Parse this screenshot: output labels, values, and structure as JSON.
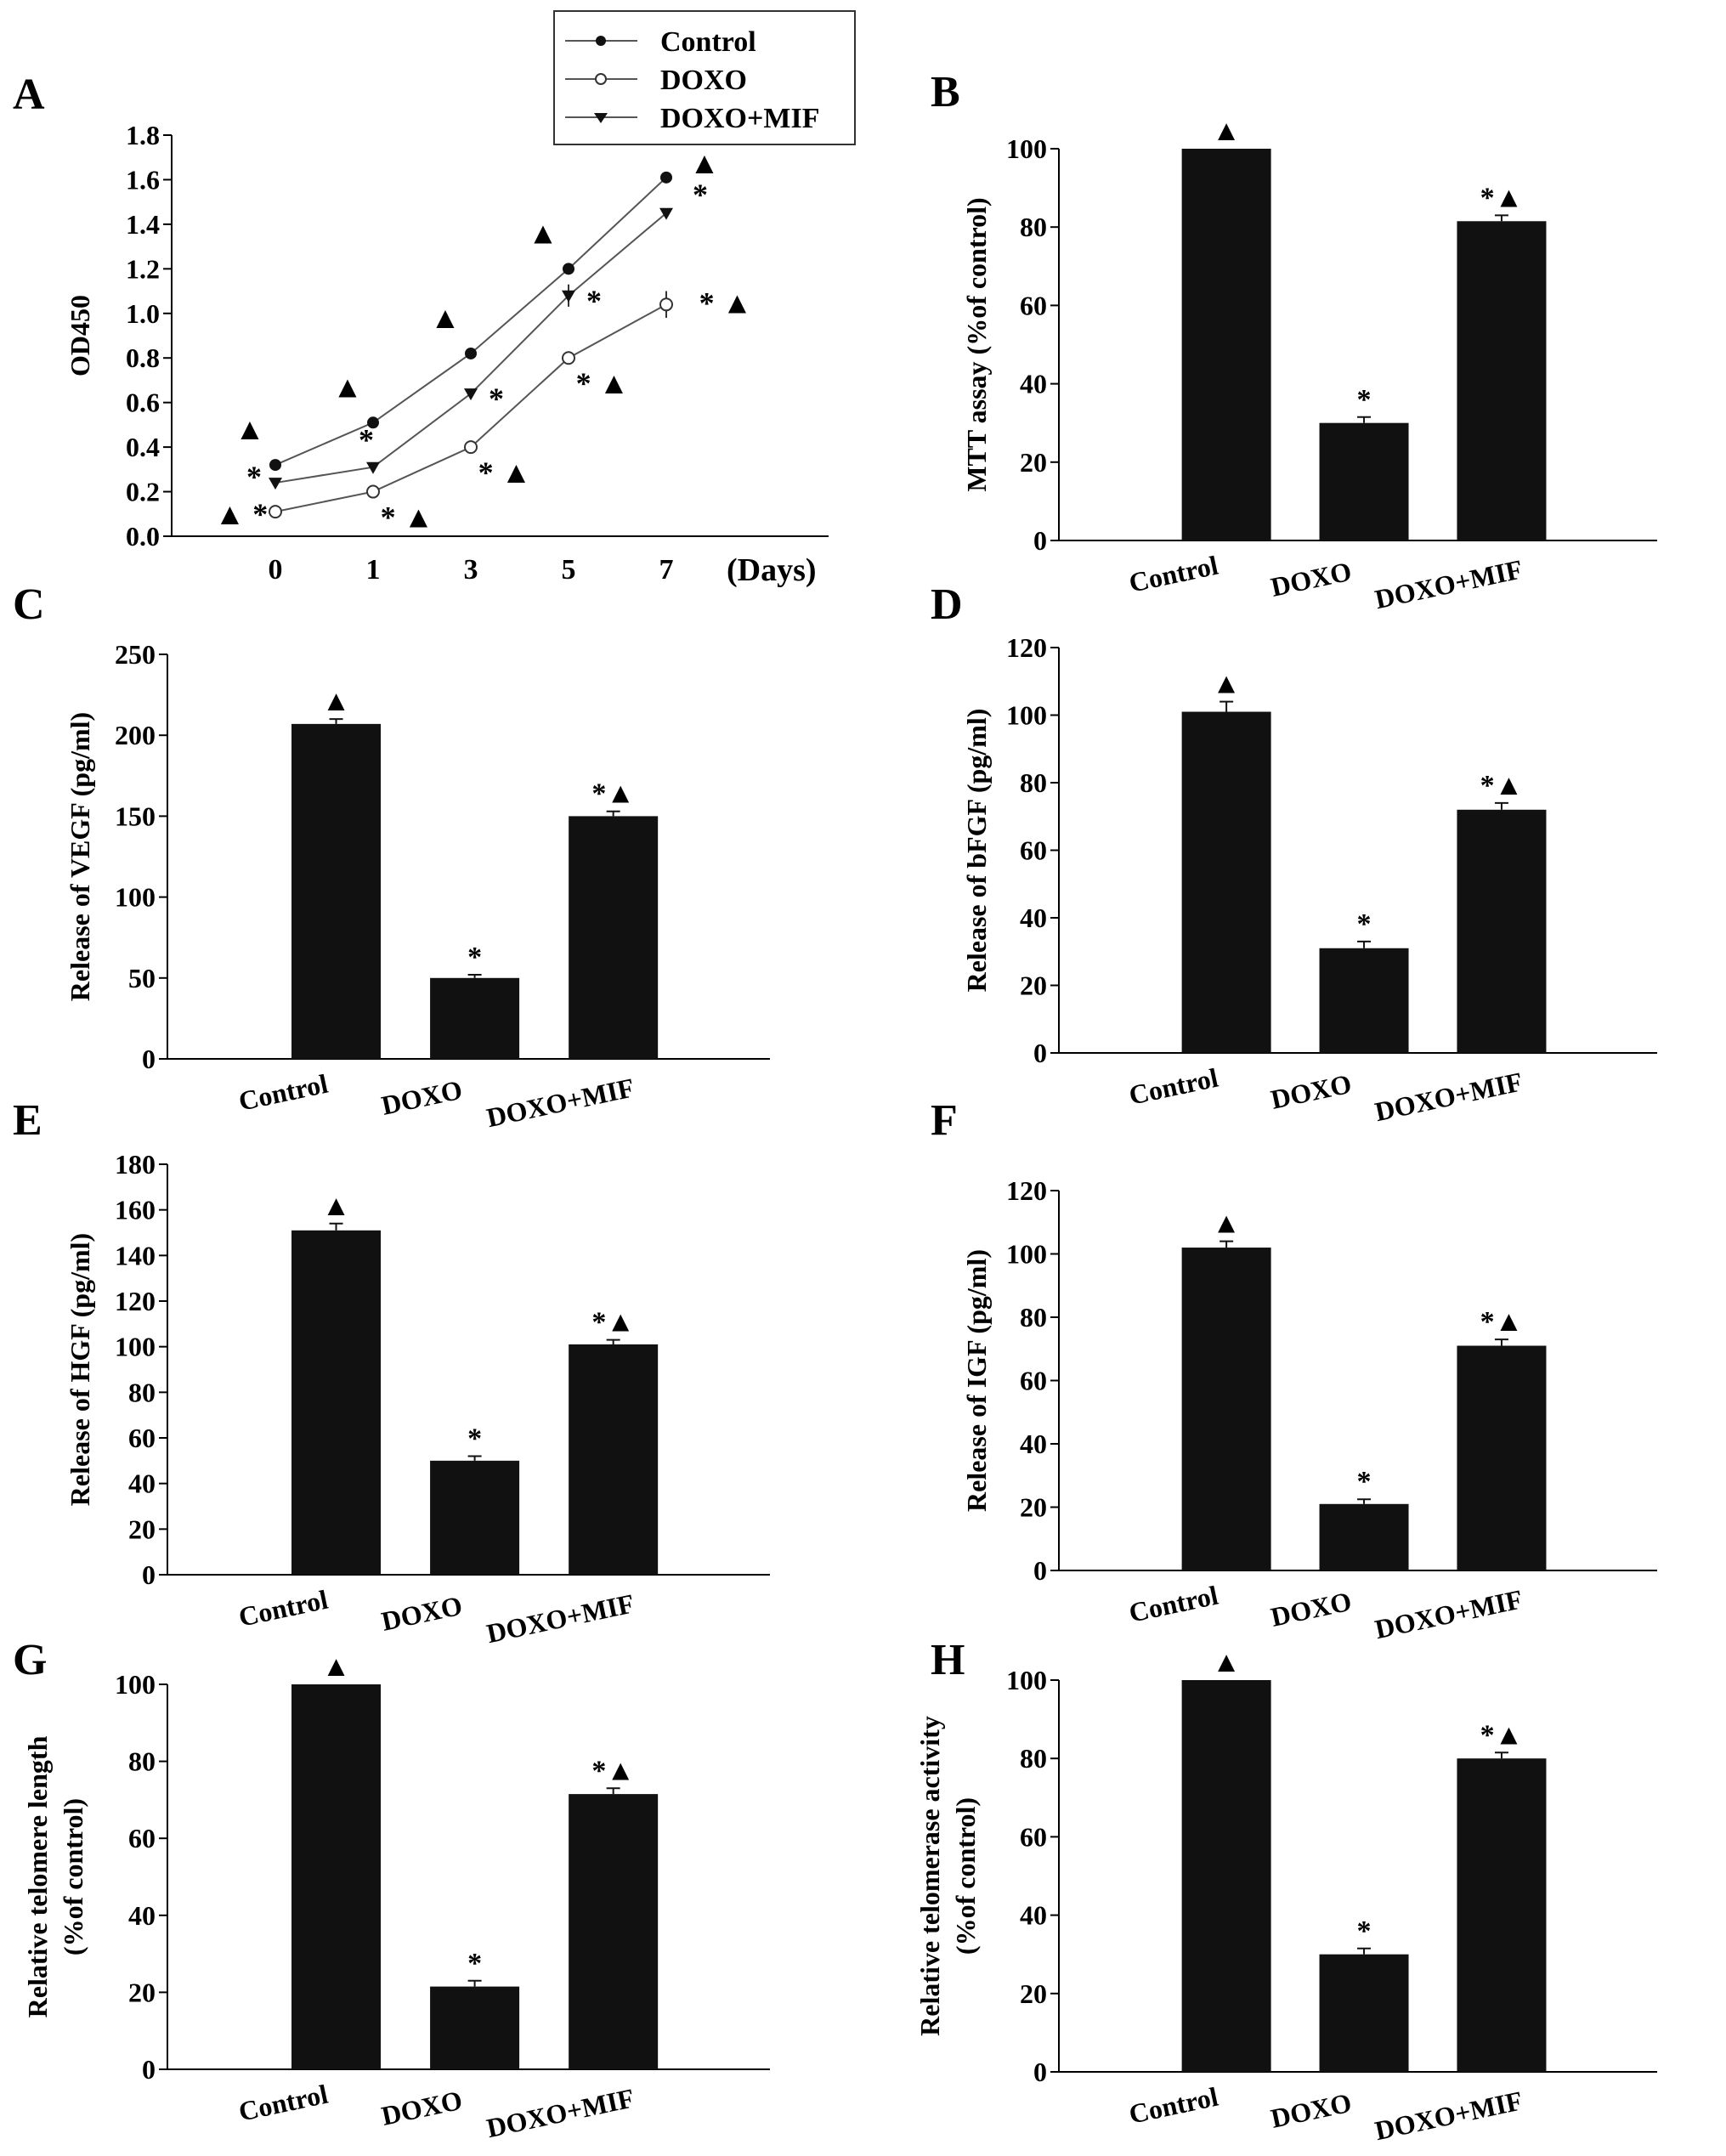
{
  "chart_data": [
    {
      "panel": "A",
      "type": "line",
      "title": "",
      "xlabel": "(Days)",
      "ylabel": "OD450",
      "categories": [
        "0",
        "1",
        "3",
        "5",
        "7"
      ],
      "ylim": [
        0,
        1.8
      ],
      "yticks": [
        "0.0",
        "0.2",
        "0.4",
        "0.6",
        "0.8",
        "1.0",
        "1.2",
        "1.4",
        "1.6",
        "1.8"
      ],
      "series": [
        {
          "name": "Control",
          "marker": "filled-circle",
          "values": [
            0.32,
            0.51,
            0.82,
            1.2,
            1.61
          ],
          "errors": [
            0.02,
            0.02,
            0.015,
            0.015,
            0.02
          ],
          "annotations": [
            "▲",
            "▲",
            "▲",
            "▲",
            "▲"
          ]
        },
        {
          "name": "DOXO",
          "marker": "open-circle",
          "values": [
            0.11,
            0.2,
            0.4,
            0.8,
            1.04
          ],
          "errors": [
            0.01,
            0.01,
            0.015,
            0.015,
            0.06
          ],
          "annotations": [
            "▲ *",
            "* ▲",
            "* ▲",
            "* ▲",
            "* ▲"
          ]
        },
        {
          "name": "DOXO+MIF",
          "marker": "down-triangle",
          "values": [
            0.24,
            0.31,
            0.64,
            1.08,
            1.45
          ],
          "errors": [
            0.02,
            0.015,
            0.015,
            0.05,
            0.015
          ],
          "annotations": [
            "*",
            "*",
            "*",
            "*",
            "*"
          ]
        }
      ],
      "legend": "top-right"
    },
    {
      "panel": "B",
      "type": "bar",
      "ylabel": "MTT assay (%of control)",
      "categories": [
        "Control",
        "DOXO",
        "DOXO+MIF"
      ],
      "values": [
        100,
        30,
        81.5
      ],
      "errors": [
        0,
        1.5,
        1.5
      ],
      "annotations": [
        "▲",
        "*",
        "*▲"
      ],
      "ylim": [
        0,
        100
      ],
      "yticks": [
        "0",
        "20",
        "40",
        "60",
        "80",
        "100"
      ]
    },
    {
      "panel": "C",
      "type": "bar",
      "ylabel": "Release of VEGF (pg/ml)",
      "categories": [
        "Control",
        "DOXO",
        "DOXO+MIF"
      ],
      "values": [
        207,
        50,
        150
      ],
      "errors": [
        3,
        2,
        3
      ],
      "annotations": [
        "▲",
        "*",
        "*▲"
      ],
      "ylim": [
        0,
        250
      ],
      "yticks": [
        "0",
        "50",
        "100",
        "150",
        "200",
        "250"
      ]
    },
    {
      "panel": "D",
      "type": "bar",
      "ylabel": "Release of bFGF (pg/ml)",
      "categories": [
        "Control",
        "DOXO",
        "DOXO+MIF"
      ],
      "values": [
        101,
        31,
        72
      ],
      "errors": [
        3,
        2,
        2
      ],
      "annotations": [
        "▲",
        "*",
        "*▲"
      ],
      "ylim": [
        0,
        120
      ],
      "yticks": [
        "0",
        "20",
        "40",
        "60",
        "80",
        "100",
        "120"
      ]
    },
    {
      "panel": "E",
      "type": "bar",
      "ylabel": "Release of HGF (pg/ml)",
      "categories": [
        "Control",
        "DOXO",
        "DOXO+MIF"
      ],
      "values": [
        151,
        50,
        101
      ],
      "errors": [
        3,
        2,
        2
      ],
      "annotations": [
        "▲",
        "*",
        "*▲"
      ],
      "ylim": [
        0,
        180
      ],
      "yticks": [
        "0",
        "20",
        "40",
        "60",
        "80",
        "100",
        "120",
        "140",
        "160",
        "180"
      ]
    },
    {
      "panel": "F",
      "type": "bar",
      "ylabel": "Release of IGF (pg/ml)",
      "categories": [
        "Control",
        "DOXO",
        "DOXO+MIF"
      ],
      "values": [
        102,
        21,
        71
      ],
      "errors": [
        2,
        1.5,
        2
      ],
      "annotations": [
        "▲",
        "*",
        "*▲"
      ],
      "ylim": [
        0,
        120
      ],
      "yticks": [
        "0",
        "20",
        "40",
        "60",
        "80",
        "100",
        "120"
      ]
    },
    {
      "panel": "G",
      "type": "bar",
      "ylabel": "Relative telomere length",
      "ylabel2": "(%of control)",
      "categories": [
        "Control",
        "DOXO",
        "DOXO+MIF"
      ],
      "values": [
        100,
        21.5,
        71.5
      ],
      "errors": [
        0,
        1.5,
        1.5
      ],
      "annotations": [
        "▲",
        "*",
        "*▲"
      ],
      "ylim": [
        0,
        100
      ],
      "yticks": [
        "0",
        "20",
        "40",
        "60",
        "80",
        "100"
      ]
    },
    {
      "panel": "H",
      "type": "bar",
      "ylabel": "Relative telomerase activity",
      "ylabel2": "(%of control)",
      "categories": [
        "Control",
        "DOXO",
        "DOXO+MIF"
      ],
      "values": [
        100,
        30,
        80
      ],
      "errors": [
        0,
        1.5,
        1.5
      ],
      "annotations": [
        "▲",
        "*",
        "*▲"
      ],
      "ylim": [
        0,
        100
      ],
      "yticks": [
        "0",
        "20",
        "40",
        "60",
        "80",
        "100"
      ]
    }
  ]
}
